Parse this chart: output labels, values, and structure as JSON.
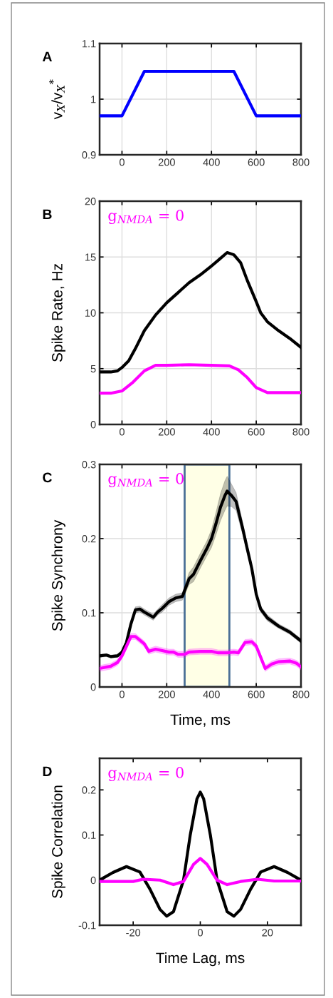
{
  "chart_data": [
    {
      "type": "line",
      "title": "A",
      "ylabel": "v$_{X}$/v$_{X}$$^{*}$",
      "xlim": [
        -100,
        800
      ],
      "xticks": [
        0,
        200,
        400,
        600,
        800
      ],
      "ylim": [
        0.9,
        1.1
      ],
      "yticks": [
        0.9,
        1,
        1.1
      ],
      "grid": true,
      "series": [
        {
          "color": "#0000ff",
          "x": [
            -100,
            0,
            100,
            500,
            600,
            800
          ],
          "values": [
            0.97,
            0.97,
            1.05,
            1.05,
            0.97,
            0.97
          ]
        }
      ]
    },
    {
      "type": "line",
      "title": "B",
      "ylabel": "Spike Rate, Hz",
      "xlim": [
        -100,
        800
      ],
      "xticks": [
        0,
        200,
        400,
        600,
        800
      ],
      "ylim": [
        0,
        20
      ],
      "yticks": [
        0,
        5,
        10,
        15,
        20
      ],
      "grid": true,
      "annotations": [
        "g$_{NMDA}$ = 0"
      ],
      "series": [
        {
          "color": "#000000",
          "x": [
            -100,
            -50,
            -20,
            0,
            30,
            60,
            100,
            150,
            200,
            250,
            300,
            350,
            400,
            430,
            470,
            500,
            530,
            560,
            600,
            620,
            650,
            700,
            750,
            800
          ],
          "values": [
            4.7,
            4.7,
            4.8,
            5.1,
            5.7,
            6.8,
            8.4,
            9.8,
            10.9,
            11.8,
            12.7,
            13.4,
            14.2,
            14.7,
            15.4,
            15.2,
            14.5,
            12.9,
            11.0,
            10.0,
            9.2,
            8.4,
            7.7,
            6.9
          ]
        },
        {
          "color": "#ff00ff",
          "x": [
            -100,
            -50,
            0,
            50,
            100,
            150,
            200,
            300,
            400,
            480,
            520,
            560,
            600,
            650,
            700,
            800
          ],
          "values": [
            2.8,
            2.8,
            3.0,
            3.8,
            4.8,
            5.3,
            5.3,
            5.35,
            5.3,
            5.25,
            4.9,
            4.2,
            3.3,
            2.85,
            2.85,
            2.85
          ]
        }
      ]
    },
    {
      "type": "line",
      "title": "C",
      "ylabel": "Spike Synchrony",
      "xlabel": "Time, ms",
      "xlim": [
        -100,
        800
      ],
      "xticks": [
        0,
        200,
        400,
        600,
        800
      ],
      "ylim": [
        0,
        0.3
      ],
      "yticks": [
        0,
        0.1,
        0.2,
        0.3
      ],
      "grid": true,
      "annotations": [
        "g$_{NMDA}$ = 0"
      ],
      "bands": [
        {
          "axis": "x",
          "from": 280,
          "to": 480,
          "color": "#ffffe6"
        }
      ],
      "series": [
        {
          "color": "#000000",
          "x": [
            -100,
            -70,
            -50,
            -20,
            0,
            20,
            40,
            60,
            80,
            100,
            140,
            160,
            180,
            210,
            240,
            270,
            280,
            300,
            320,
            350,
            380,
            400,
            420,
            440,
            460,
            470,
            490,
            510,
            540,
            560,
            580,
            600,
            620,
            650,
            700,
            750,
            800
          ],
          "values": [
            0.042,
            0.043,
            0.041,
            0.042,
            0.047,
            0.06,
            0.085,
            0.104,
            0.105,
            0.101,
            0.094,
            0.101,
            0.106,
            0.115,
            0.12,
            0.122,
            0.13,
            0.146,
            0.152,
            0.17,
            0.187,
            0.2,
            0.22,
            0.242,
            0.258,
            0.264,
            0.258,
            0.25,
            0.213,
            0.186,
            0.16,
            0.125,
            0.105,
            0.093,
            0.082,
            0.074,
            0.062
          ],
          "lower": [
            0.04,
            0.041,
            0.039,
            0.04,
            0.045,
            0.057,
            0.082,
            0.1,
            0.101,
            0.097,
            0.09,
            0.097,
            0.101,
            0.11,
            0.115,
            0.117,
            0.124,
            0.138,
            0.142,
            0.16,
            0.177,
            0.188,
            0.205,
            0.224,
            0.238,
            0.244,
            0.243,
            0.238,
            0.205,
            0.18,
            0.155,
            0.121,
            0.101,
            0.089,
            0.079,
            0.071,
            0.059
          ],
          "upper": [
            0.044,
            0.045,
            0.043,
            0.044,
            0.049,
            0.063,
            0.088,
            0.108,
            0.109,
            0.105,
            0.098,
            0.105,
            0.111,
            0.12,
            0.125,
            0.127,
            0.136,
            0.154,
            0.162,
            0.18,
            0.197,
            0.212,
            0.235,
            0.26,
            0.278,
            0.284,
            0.273,
            0.262,
            0.221,
            0.192,
            0.165,
            0.129,
            0.109,
            0.097,
            0.085,
            0.077,
            0.065
          ]
        },
        {
          "color": "#ff00ff",
          "x": [
            -100,
            -50,
            -20,
            0,
            20,
            40,
            60,
            80,
            100,
            120,
            150,
            180,
            210,
            230,
            250,
            280,
            300,
            350,
            400,
            430,
            470,
            500,
            520,
            550,
            580,
            600,
            620,
            640,
            670,
            700,
            750,
            780,
            800
          ],
          "values": [
            0.025,
            0.028,
            0.033,
            0.042,
            0.055,
            0.068,
            0.068,
            0.063,
            0.058,
            0.048,
            0.051,
            0.049,
            0.047,
            0.047,
            0.044,
            0.044,
            0.047,
            0.048,
            0.048,
            0.046,
            0.046,
            0.047,
            0.046,
            0.06,
            0.061,
            0.055,
            0.04,
            0.025,
            0.031,
            0.034,
            0.035,
            0.032,
            0.027
          ],
          "lower": [
            0.021,
            0.024,
            0.029,
            0.038,
            0.051,
            0.064,
            0.064,
            0.059,
            0.054,
            0.044,
            0.047,
            0.045,
            0.043,
            0.043,
            0.04,
            0.04,
            0.043,
            0.044,
            0.044,
            0.042,
            0.042,
            0.043,
            0.042,
            0.056,
            0.057,
            0.051,
            0.036,
            0.021,
            0.027,
            0.03,
            0.031,
            0.028,
            0.023
          ],
          "upper": [
            0.029,
            0.032,
            0.037,
            0.046,
            0.059,
            0.072,
            0.072,
            0.067,
            0.062,
            0.052,
            0.055,
            0.053,
            0.051,
            0.051,
            0.048,
            0.048,
            0.051,
            0.052,
            0.052,
            0.05,
            0.05,
            0.051,
            0.05,
            0.064,
            0.065,
            0.059,
            0.044,
            0.029,
            0.035,
            0.038,
            0.039,
            0.036,
            0.031
          ]
        }
      ]
    },
    {
      "type": "line",
      "title": "D",
      "ylabel": "Spike Correlation",
      "xlabel": "Time Lag, ms",
      "xlim": [
        -30,
        30
      ],
      "xticks": [
        -20,
        0,
        20
      ],
      "ylim": [
        -0.1,
        0.27
      ],
      "yticks": [
        -0.1,
        0,
        0.1,
        0.2
      ],
      "grid": false,
      "annotations": [
        "g$_{NMDA}$ = 0"
      ],
      "series": [
        {
          "color": "#000000",
          "x": [
            -30,
            -26,
            -22,
            -18,
            -15,
            -12,
            -10,
            -8,
            -5,
            -3,
            -1,
            0,
            1,
            3,
            5,
            8,
            10,
            12,
            15,
            18,
            22,
            26,
            30
          ],
          "values": [
            0,
            0.017,
            0.03,
            0.018,
            -0.02,
            -0.065,
            -0.08,
            -0.07,
            0,
            0.1,
            0.18,
            0.195,
            0.18,
            0.1,
            0,
            -0.07,
            -0.08,
            -0.065,
            -0.02,
            0.018,
            0.03,
            0.017,
            0
          ]
        },
        {
          "color": "#ff00ff",
          "x": [
            -30,
            -20,
            -17,
            -12,
            -8,
            -5,
            -2,
            0,
            2,
            5,
            8,
            12,
            17,
            22,
            30
          ],
          "values": [
            -0.003,
            -0.003,
            0.002,
            0,
            -0.01,
            -0.003,
            0.035,
            0.048,
            0.035,
            0,
            -0.01,
            -0.003,
            0.002,
            -0.002,
            -0.002
          ]
        }
      ]
    }
  ]
}
